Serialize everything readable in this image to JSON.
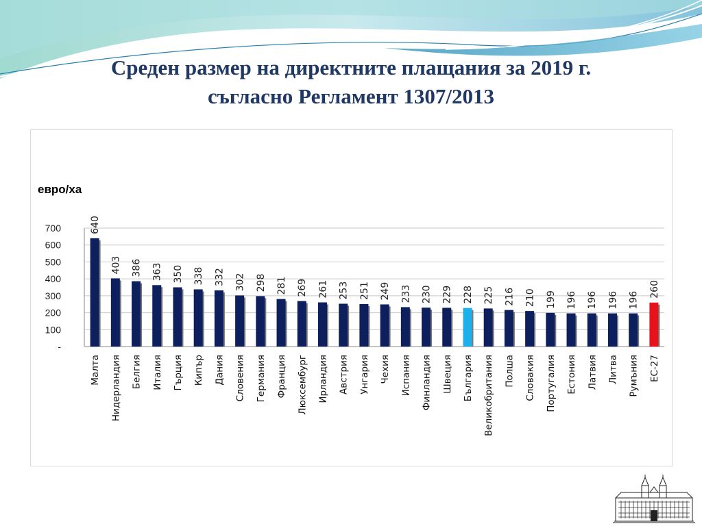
{
  "slide": {
    "title_line1": "Среден размер на директните плащания за 2019 г.",
    "title_line2": "съгласно Регламент 1307/2013"
  },
  "logo": {
    "icon": "building-engraving-logo"
  },
  "colors": {
    "title": "#1f3864",
    "bar_default": "#0d1f5c",
    "bar_bulgaria": "#1fb0ea",
    "bar_eu27": "#e8121a"
  },
  "chart_data": {
    "type": "bar",
    "ylabel": "евро/ха",
    "ylim": [
      0,
      700
    ],
    "yticks": [
      {
        "value": 0,
        "label": "-"
      },
      {
        "value": 100,
        "label": "100"
      },
      {
        "value": 200,
        "label": "200"
      },
      {
        "value": 300,
        "label": "300"
      },
      {
        "value": 400,
        "label": "400"
      },
      {
        "value": 500,
        "label": "500"
      },
      {
        "value": 600,
        "label": "600"
      },
      {
        "value": 700,
        "label": "700"
      }
    ],
    "grid": true,
    "categories": [
      "Малта",
      "Нидерландия",
      "Белгия",
      "Италия",
      "Гърция",
      "Кипър",
      "Дания",
      "Словения",
      "Германия",
      "Франция",
      "Люксембург",
      "Ирландия",
      "Австрия",
      "Унгария",
      "Чехия",
      "Испания",
      "Финландия",
      "Швеция",
      "България",
      "Великобритания",
      "Полша",
      "Словакия",
      "Португалия",
      "Естония",
      "Латвия",
      "Литва",
      "Румъния",
      "ЕС-27"
    ],
    "values": [
      640,
      403,
      386,
      363,
      350,
      338,
      332,
      302,
      298,
      281,
      269,
      261,
      253,
      251,
      249,
      233,
      230,
      229,
      228,
      225,
      216,
      210,
      199,
      196,
      196,
      196,
      196,
      260
    ],
    "highlight": {
      "България": "#1fb0ea",
      "ЕС-27": "#e8121a"
    }
  }
}
